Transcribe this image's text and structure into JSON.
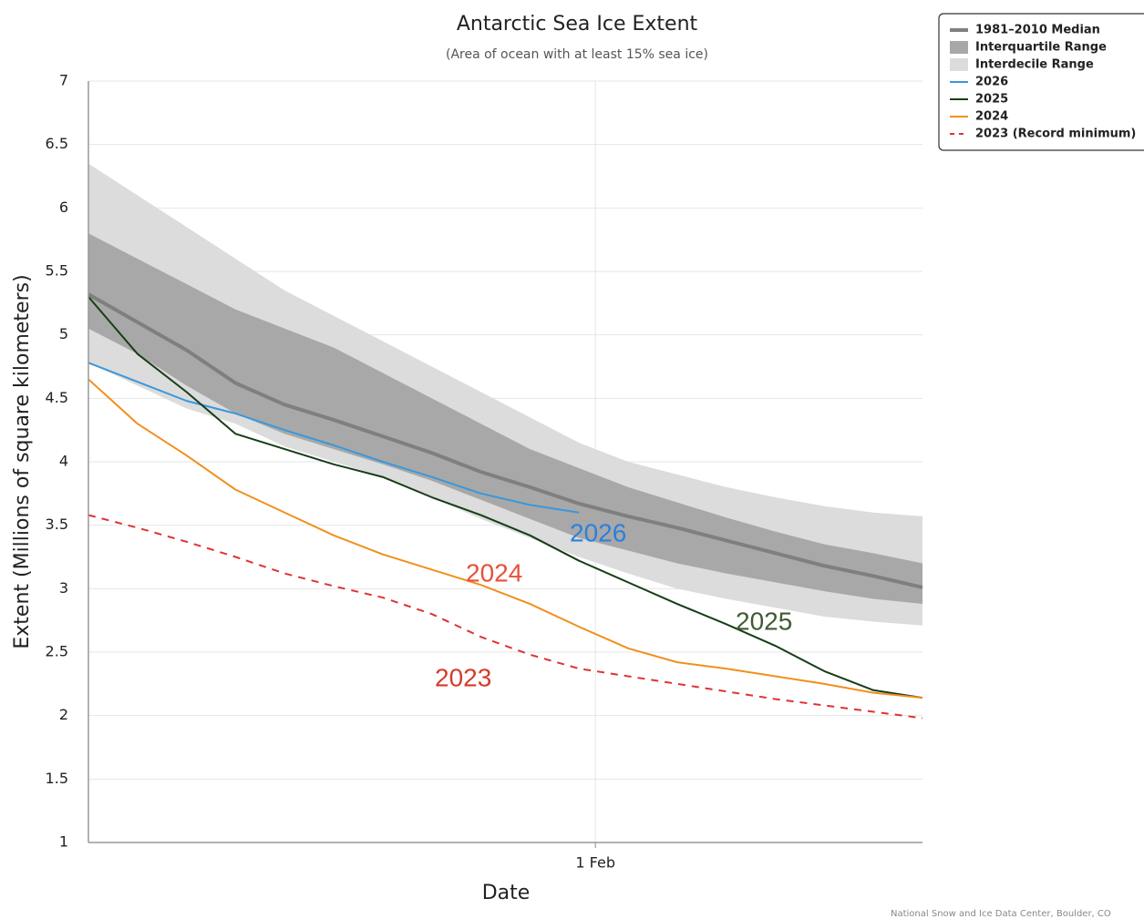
{
  "chart_data": {
    "type": "line",
    "title": "Antarctic Sea Ice Extent",
    "subtitle": "(Area of ocean with at least 15% sea ice)",
    "x_label": "Date",
    "y_label": "Extent (Millions of square kilometers)",
    "source": "National Snow and Ice Data Center, Boulder, CO",
    "x": [
      0,
      3,
      6,
      9,
      12,
      15,
      18,
      21,
      24,
      27,
      30,
      33,
      36,
      39,
      42,
      45,
      48,
      51
    ],
    "xlim": [
      0,
      51
    ],
    "xticks": [
      {
        "value": 31,
        "label": "1 Feb"
      }
    ],
    "ylim": [
      1,
      7
    ],
    "yticks": [
      1,
      1.5,
      2,
      2.5,
      3,
      3.5,
      4,
      4.5,
      5,
      5.5,
      6,
      6.5,
      7
    ],
    "grid": true,
    "legend": "top-right",
    "bands": [
      {
        "name": "Interquartile Range",
        "color": "#a8a8a8",
        "upper": [
          5.8,
          5.6,
          5.4,
          5.2,
          5.05,
          4.9,
          4.7,
          4.5,
          4.3,
          4.1,
          3.95,
          3.8,
          3.68,
          3.56,
          3.45,
          3.35,
          3.28,
          3.2
        ],
        "lower": [
          5.05,
          4.85,
          4.6,
          4.38,
          4.22,
          4.1,
          3.98,
          3.85,
          3.7,
          3.55,
          3.4,
          3.3,
          3.2,
          3.12,
          3.05,
          2.98,
          2.92,
          2.88
        ]
      },
      {
        "name": "Interdecile Range",
        "color": "#dcdcdc",
        "upper": [
          6.35,
          6.1,
          5.85,
          5.6,
          5.35,
          5.15,
          4.95,
          4.75,
          4.55,
          4.35,
          4.15,
          4.0,
          3.9,
          3.8,
          3.72,
          3.65,
          3.6,
          3.57
        ],
        "lower": [
          4.78,
          4.6,
          4.42,
          4.3,
          4.12,
          4.0,
          3.88,
          3.72,
          3.55,
          3.4,
          3.25,
          3.12,
          3.0,
          2.92,
          2.85,
          2.78,
          2.74,
          2.71
        ]
      }
    ],
    "series": [
      {
        "name": "1981–2010 Median",
        "color": "#7f7f7f",
        "width": 4,
        "values": [
          5.32,
          5.1,
          4.88,
          4.62,
          4.45,
          4.33,
          4.2,
          4.07,
          3.92,
          3.8,
          3.67,
          3.57,
          3.48,
          3.38,
          3.28,
          3.18,
          3.1,
          3.01
        ]
      },
      {
        "name": "2026",
        "color": "#3a97dc",
        "width": 2,
        "values": [
          4.78,
          4.63,
          4.48,
          4.38,
          4.25,
          4.13,
          4.0,
          3.88,
          3.75,
          3.66,
          3.6,
          null,
          null,
          null,
          null,
          null,
          null,
          null
        ]
      },
      {
        "name": "2025",
        "color": "#173d17",
        "width": 2,
        "values": [
          5.3,
          4.85,
          4.55,
          4.22,
          4.1,
          3.98,
          3.88,
          3.72,
          3.58,
          3.42,
          3.22,
          3.05,
          2.88,
          2.72,
          2.55,
          2.35,
          2.2,
          2.14
        ]
      },
      {
        "name": "2024",
        "color": "#f0901e",
        "width": 2,
        "values": [
          4.65,
          4.3,
          4.05,
          3.78,
          3.6,
          3.42,
          3.27,
          3.15,
          3.03,
          2.88,
          2.7,
          2.53,
          2.42,
          2.37,
          2.31,
          2.25,
          2.18,
          2.14
        ]
      },
      {
        "name": "2023 (Record minimum)",
        "color": "#dd3333",
        "width": 2,
        "dash": true,
        "values": [
          3.58,
          3.48,
          3.37,
          3.25,
          3.12,
          3.02,
          2.93,
          2.8,
          2.62,
          2.48,
          2.37,
          2.31,
          2.25,
          2.19,
          2.13,
          2.08,
          2.03,
          1.98
        ]
      }
    ],
    "annotations": [
      {
        "text": "2026",
        "color": "#2a80dc"
      },
      {
        "text": "2025",
        "color": "#3f5a32"
      },
      {
        "text": "2024",
        "color": "#e8503a"
      },
      {
        "text": "2023",
        "color": "#d63a2a"
      }
    ]
  }
}
